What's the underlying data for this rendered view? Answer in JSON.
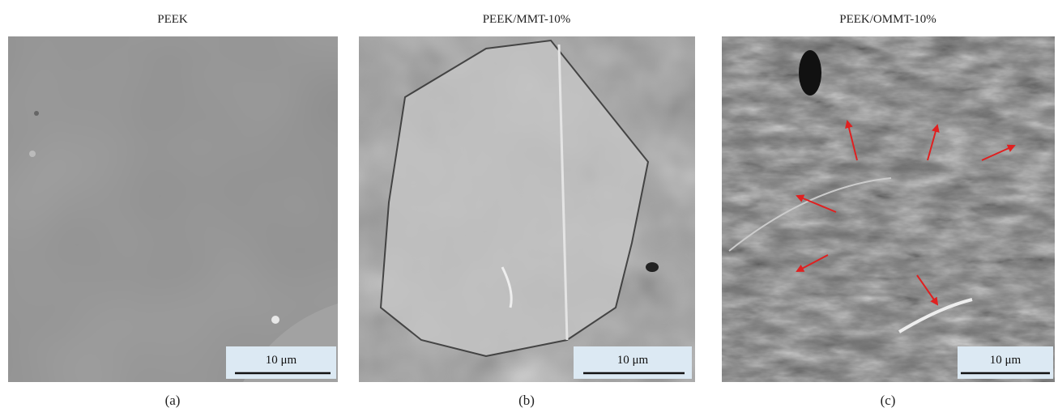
{
  "panels": [
    {
      "title": "PEEK",
      "label": "(a)",
      "scale_bar": "10 μm"
    },
    {
      "title": "PEEK/MMT-10%",
      "label": "(b)",
      "scale_bar": "10 μm"
    },
    {
      "title": "PEEK/OMMT-10%",
      "label": "(c)",
      "scale_bar": "10 μm"
    }
  ]
}
